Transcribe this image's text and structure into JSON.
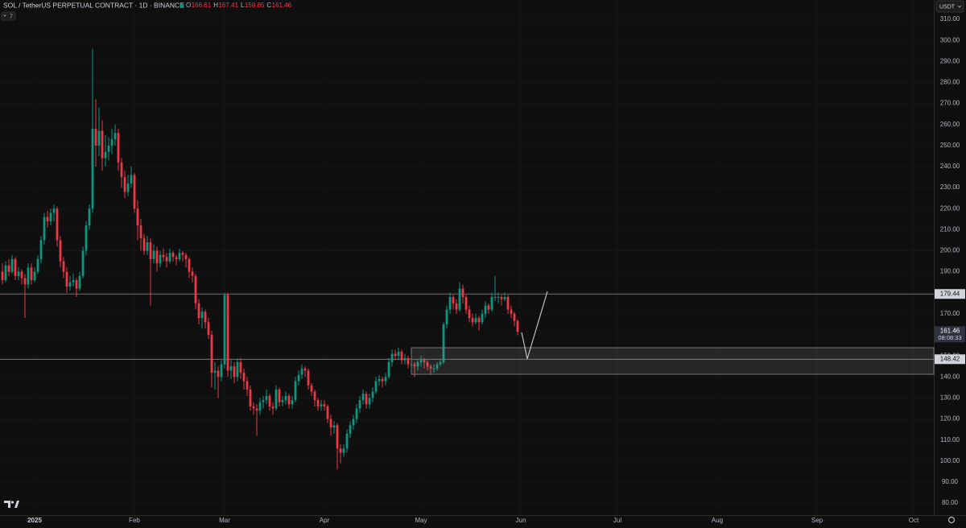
{
  "chart_data": {
    "type": "candlestick",
    "title": "SOL / TetherUS PERPETUAL CONTRACT · 1D · BINANCE",
    "ohlc_letters": [
      "O",
      "H",
      "L",
      "C"
    ],
    "indicator_count": "7",
    "currency": "USDT",
    "countdown": "08:08:33",
    "up_color": "#089981",
    "down_color": "#f23645",
    "hlines": [
      179.44,
      148.42
    ],
    "xlim": [
      -10.75,
      279.25
    ],
    "xticks": [
      {
        "value": 0,
        "label": "2025"
      },
      {
        "value": 31,
        "label": "Feb"
      },
      {
        "value": 59,
        "label": "Mar"
      },
      {
        "value": 90,
        "label": "Apr"
      },
      {
        "value": 120,
        "label": "May"
      },
      {
        "value": 151,
        "label": "Jun"
      },
      {
        "value": 181,
        "label": "Jul"
      },
      {
        "value": 212,
        "label": "Aug"
      },
      {
        "value": 243,
        "label": "Sep"
      },
      {
        "value": 273,
        "label": "Oct"
      }
    ],
    "ylim": [
      74.3,
      319.2
    ],
    "yticks": [
      {
        "value": 80,
        "label": "80.00"
      },
      {
        "value": 90,
        "label": "90.00"
      },
      {
        "value": 100,
        "label": "100.00"
      },
      {
        "value": 110,
        "label": "110.00"
      },
      {
        "value": 120,
        "label": "120.00"
      },
      {
        "value": 130,
        "label": "130.00"
      },
      {
        "value": 140,
        "label": "140.00"
      },
      {
        "value": 150,
        "label": "150.00"
      },
      {
        "value": 160,
        "label": "160.00"
      },
      {
        "value": 170,
        "label": "170.00"
      },
      {
        "value": 180,
        "label": "180.00"
      },
      {
        "value": 190,
        "label": "190.00"
      },
      {
        "value": 200,
        "label": "200.00"
      },
      {
        "value": 210,
        "label": "210.00"
      },
      {
        "value": 220,
        "label": "220.00"
      },
      {
        "value": 230,
        "label": "230.00"
      },
      {
        "value": 240,
        "label": "240.00"
      },
      {
        "value": 250,
        "label": "250.00"
      },
      {
        "value": 260,
        "label": "260.00"
      },
      {
        "value": 270,
        "label": "270.00"
      },
      {
        "value": 280,
        "label": "280.00"
      },
      {
        "value": 290,
        "label": "290.00"
      },
      {
        "value": 300,
        "label": "300.00"
      },
      {
        "value": 310,
        "label": "310.00"
      }
    ],
    "x": [
      -10,
      -9,
      -8,
      -7,
      -6,
      -5,
      -4,
      -3,
      -2,
      -1,
      0,
      1,
      2,
      3,
      4,
      5,
      6,
      7,
      8,
      9,
      10,
      11,
      12,
      13,
      14,
      15,
      16,
      17,
      18,
      19,
      20,
      21,
      22,
      23,
      24,
      25,
      26,
      27,
      28,
      29,
      30,
      31,
      32,
      33,
      34,
      35,
      36,
      37,
      38,
      39,
      40,
      41,
      42,
      43,
      44,
      45,
      46,
      47,
      48,
      49,
      50,
      51,
      52,
      53,
      54,
      55,
      56,
      57,
      58,
      59,
      60,
      61,
      62,
      63,
      64,
      65,
      66,
      67,
      68,
      69,
      70,
      71,
      72,
      73,
      74,
      75,
      76,
      77,
      78,
      79,
      80,
      81,
      82,
      83,
      84,
      85,
      86,
      87,
      88,
      89,
      90,
      91,
      92,
      93,
      94,
      95,
      96,
      97,
      98,
      99,
      100,
      101,
      102,
      103,
      104,
      105,
      106,
      107,
      108,
      109,
      110,
      111,
      112,
      113,
      114,
      115,
      116,
      117,
      118,
      119,
      120,
      121,
      122,
      123,
      124,
      125,
      126,
      127,
      128,
      129,
      130,
      131,
      132,
      133,
      134,
      135,
      136,
      137,
      138,
      139,
      140,
      141,
      142,
      143,
      144,
      145,
      146,
      147,
      148,
      149,
      150
    ],
    "candles": [
      [
        190,
        194,
        184,
        186
      ],
      [
        186,
        195,
        185,
        193
      ],
      [
        193,
        196,
        188,
        190
      ],
      [
        190,
        198,
        189,
        196
      ],
      [
        196,
        197,
        186,
        188
      ],
      [
        188,
        192,
        186,
        190
      ],
      [
        190,
        191,
        184,
        187
      ],
      [
        187,
        189,
        168,
        184
      ],
      [
        184,
        194,
        182,
        192
      ],
      [
        192,
        194,
        184,
        186
      ],
      [
        186,
        192,
        185,
        190
      ],
      [
        190,
        198,
        189,
        196
      ],
      [
        196,
        207,
        194,
        205
      ],
      [
        205,
        218,
        203,
        216
      ],
      [
        216,
        219,
        211,
        214
      ],
      [
        214,
        220,
        212,
        218
      ],
      [
        218,
        222,
        214,
        220
      ],
      [
        220,
        221,
        202,
        205
      ],
      [
        205,
        207,
        192,
        195
      ],
      [
        195,
        197,
        187,
        190
      ],
      [
        190,
        192,
        180,
        183
      ],
      [
        183,
        188,
        181,
        185
      ],
      [
        185,
        189,
        183,
        186
      ],
      [
        186,
        187,
        178,
        182
      ],
      [
        182,
        190,
        181,
        188
      ],
      [
        188,
        202,
        187,
        200
      ],
      [
        200,
        214,
        198,
        212
      ],
      [
        212,
        222,
        210,
        220
      ],
      [
        220,
        296,
        218,
        258
      ],
      [
        258,
        272,
        240,
        250
      ],
      [
        250,
        268,
        245,
        257
      ],
      [
        257,
        262,
        238,
        244
      ],
      [
        244,
        255,
        240,
        247
      ],
      [
        247,
        254,
        243,
        250
      ],
      [
        250,
        258,
        246,
        253
      ],
      [
        253,
        260,
        250,
        256
      ],
      [
        256,
        258,
        238,
        242
      ],
      [
        242,
        244,
        230,
        235
      ],
      [
        235,
        238,
        225,
        228
      ],
      [
        228,
        236,
        226,
        232
      ],
      [
        232,
        240,
        230,
        236
      ],
      [
        236,
        237,
        218,
        220
      ],
      [
        220,
        224,
        205,
        212
      ],
      [
        212,
        215,
        200,
        206
      ],
      [
        206,
        208,
        198,
        200
      ],
      [
        200,
        207,
        198,
        204
      ],
      [
        204,
        206,
        174,
        196
      ],
      [
        196,
        203,
        194,
        200
      ],
      [
        200,
        202,
        190,
        194
      ],
      [
        194,
        200,
        192,
        198
      ],
      [
        198,
        201,
        195,
        197
      ],
      [
        197,
        199,
        192,
        195
      ],
      [
        195,
        201,
        194,
        199
      ],
      [
        199,
        200,
        195,
        197
      ],
      [
        197,
        198,
        193,
        196
      ],
      [
        196,
        201,
        195,
        199
      ],
      [
        199,
        200,
        195,
        198
      ],
      [
        198,
        199,
        192,
        196
      ],
      [
        196,
        197,
        187,
        190
      ],
      [
        190,
        192,
        185,
        188
      ],
      [
        188,
        189,
        172,
        175
      ],
      [
        175,
        177,
        165,
        168
      ],
      [
        168,
        173,
        163,
        171
      ],
      [
        171,
        172,
        163,
        166
      ],
      [
        166,
        168,
        158,
        160
      ],
      [
        160,
        162,
        135,
        142
      ],
      [
        142,
        147,
        134,
        143
      ],
      [
        143,
        145,
        130,
        140
      ],
      [
        140,
        148,
        138,
        146
      ],
      [
        146,
        180,
        144,
        179
      ],
      [
        179,
        180,
        140,
        143
      ],
      [
        143,
        148,
        139,
        145
      ],
      [
        145,
        147,
        137,
        140
      ],
      [
        140,
        149,
        138,
        147
      ],
      [
        147,
        149,
        139,
        142
      ],
      [
        142,
        144,
        134,
        138
      ],
      [
        138,
        140,
        131,
        134
      ],
      [
        134,
        136,
        124,
        126
      ],
      [
        126,
        128,
        122,
        125
      ],
      [
        125,
        127,
        112,
        124
      ],
      [
        124,
        130,
        122,
        128
      ],
      [
        128,
        131,
        125,
        129
      ],
      [
        129,
        134,
        127,
        131
      ],
      [
        131,
        132,
        124,
        126
      ],
      [
        126,
        128,
        122,
        125
      ],
      [
        125,
        136,
        124,
        134
      ],
      [
        134,
        135,
        126,
        128
      ],
      [
        128,
        131,
        126,
        129
      ],
      [
        129,
        133,
        127,
        131
      ],
      [
        131,
        132,
        125,
        127
      ],
      [
        127,
        131,
        125,
        129
      ],
      [
        129,
        140,
        128,
        138
      ],
      [
        138,
        143,
        136,
        141
      ],
      [
        141,
        146,
        139,
        144
      ],
      [
        144,
        145,
        140,
        143
      ],
      [
        143,
        144,
        134,
        136
      ],
      [
        136,
        137,
        131,
        133
      ],
      [
        133,
        134,
        126,
        129
      ],
      [
        129,
        130,
        124,
        126
      ],
      [
        126,
        129,
        124,
        127
      ],
      [
        127,
        129,
        124,
        126
      ],
      [
        126,
        127,
        118,
        120
      ],
      [
        120,
        122,
        112,
        116
      ],
      [
        116,
        119,
        113,
        117
      ],
      [
        117,
        118,
        96,
        106
      ],
      [
        106,
        108,
        99,
        104
      ],
      [
        104,
        108,
        102,
        106
      ],
      [
        106,
        115,
        104,
        113
      ],
      [
        113,
        119,
        111,
        117
      ],
      [
        117,
        122,
        115,
        120
      ],
      [
        120,
        127,
        118,
        125
      ],
      [
        125,
        131,
        123,
        129
      ],
      [
        129,
        134,
        127,
        132
      ],
      [
        132,
        133,
        125,
        127
      ],
      [
        127,
        132,
        125,
        130
      ],
      [
        130,
        135,
        128,
        133
      ],
      [
        133,
        140,
        132,
        138
      ],
      [
        138,
        141,
        136,
        139
      ],
      [
        139,
        140,
        135,
        138
      ],
      [
        138,
        142,
        136,
        140
      ],
      [
        140,
        149,
        139,
        147
      ],
      [
        147,
        153,
        145,
        151
      ],
      [
        151,
        153,
        148,
        150
      ],
      [
        150,
        154,
        148,
        152
      ],
      [
        152,
        153,
        146,
        148
      ],
      [
        148,
        151,
        146,
        149
      ],
      [
        149,
        150,
        144,
        146
      ],
      [
        146,
        148,
        143,
        146
      ],
      [
        146,
        147,
        140,
        145
      ],
      [
        145,
        148,
        143,
        147
      ],
      [
        147,
        150,
        145,
        148
      ],
      [
        148,
        149,
        144,
        147
      ],
      [
        147,
        148,
        143,
        145
      ],
      [
        145,
        146,
        141,
        144
      ],
      [
        144,
        146,
        142,
        144
      ],
      [
        144,
        147,
        143,
        146
      ],
      [
        146,
        148,
        145,
        147
      ],
      [
        147,
        166,
        146,
        165
      ],
      [
        165,
        174,
        163,
        172
      ],
      [
        172,
        180,
        170,
        178
      ],
      [
        178,
        179,
        172,
        175
      ],
      [
        175,
        177,
        170,
        172
      ],
      [
        172,
        185,
        171,
        182
      ],
      [
        182,
        184,
        175,
        178
      ],
      [
        178,
        179,
        170,
        172
      ],
      [
        172,
        174,
        166,
        168
      ],
      [
        168,
        170,
        164,
        166
      ],
      [
        166,
        170,
        165,
        168
      ],
      [
        168,
        169,
        162,
        166
      ],
      [
        166,
        172,
        165,
        170
      ],
      [
        170,
        176,
        168,
        174
      ],
      [
        174,
        175,
        170,
        172
      ],
      [
        172,
        180,
        171,
        178
      ],
      [
        178,
        188,
        176,
        178
      ],
      [
        178,
        180,
        175,
        178
      ],
      [
        178,
        179,
        174,
        177
      ],
      [
        177,
        180,
        176,
        178
      ],
      [
        178,
        179,
        170,
        172
      ],
      [
        172,
        174,
        168,
        170
      ],
      [
        170,
        171,
        164,
        166.61
      ],
      [
        166.61,
        167.41,
        159.85,
        161.46
      ]
    ]
  }
}
